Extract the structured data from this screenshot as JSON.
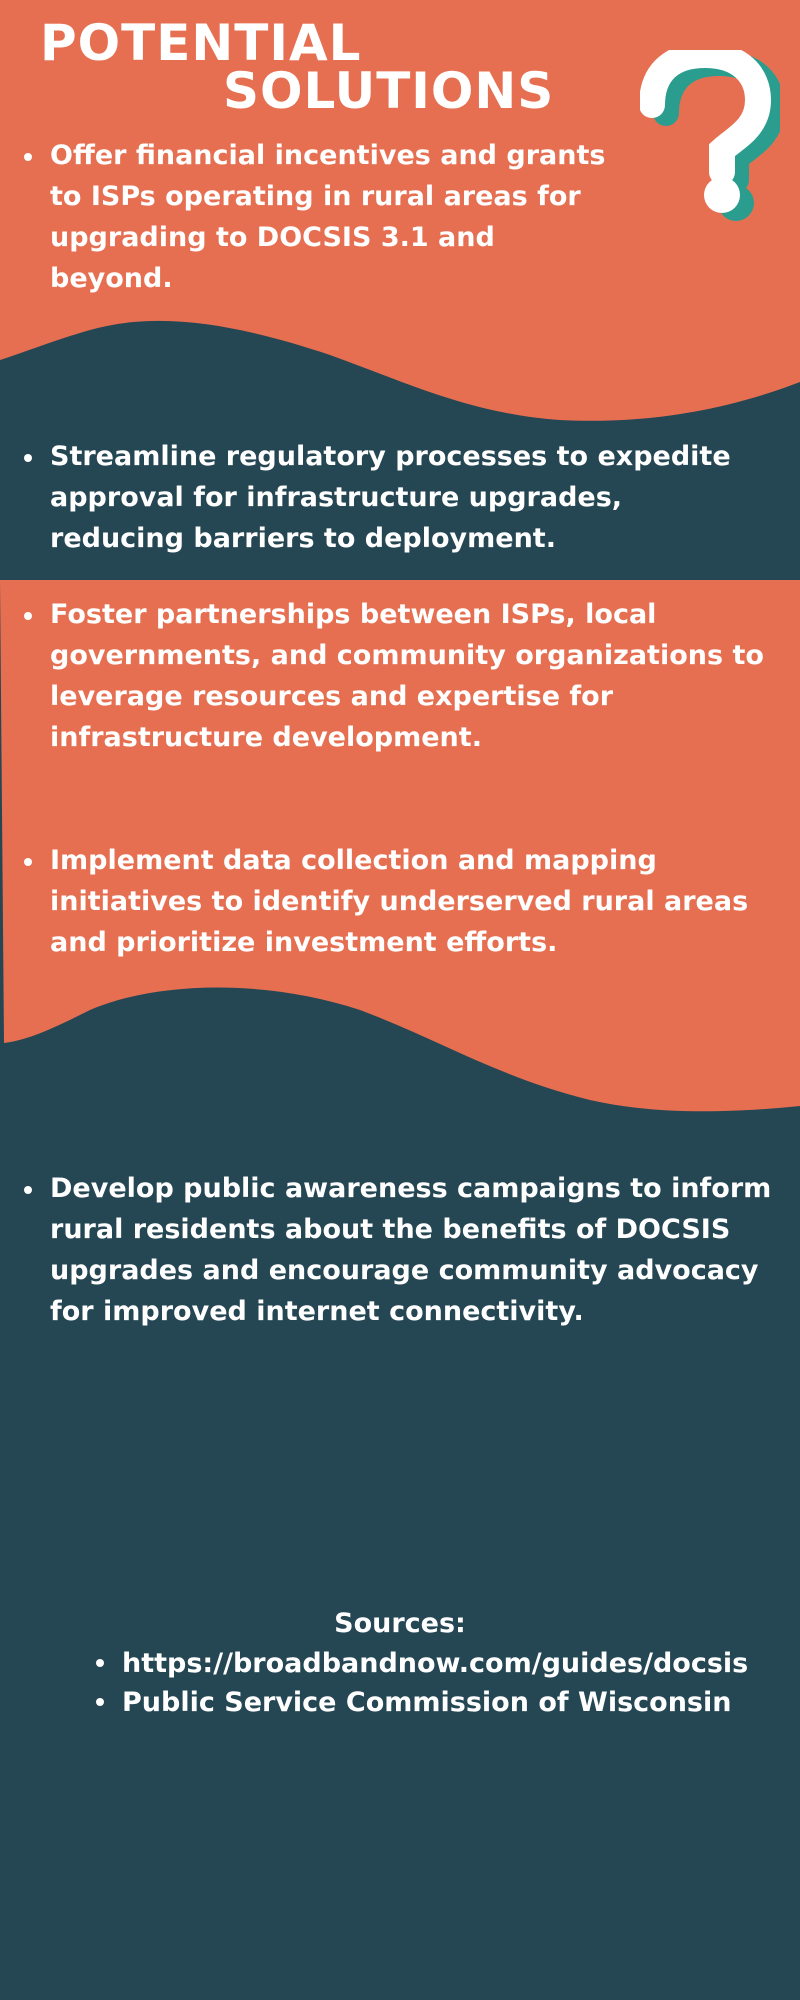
{
  "colors": {
    "background": "#254653",
    "accent": "#E76F51",
    "teal": "#2A9D8F",
    "text": "#FFFFFF"
  },
  "title": {
    "line1": "POTENTIAL",
    "line2": "SOLUTIONS"
  },
  "icon": "question-mark-icon",
  "solutions": [
    "Offer financial incentives and grants to ISPs operating in rural areas for upgrading to DOCSIS 3.1 and beyond.",
    "Streamline regulatory processes to expedite approval for infrastructure upgrades, reducing barriers to deployment.",
    "Foster partnerships between ISPs, local governments, and community organizations to leverage resources and expertise for infrastructure development.",
    "Implement data collection and mapping initiatives to identify underserved rural areas and prioritize investment efforts.",
    "Develop public awareness campaigns to inform rural residents about the benefits of DOCSIS upgrades and encourage community advocacy for improved internet connectivity."
  ],
  "sources": {
    "heading": "Sources:",
    "items": [
      "https://broadbandnow.com/guides/docsis",
      "Public Service Commission of Wisconsin"
    ]
  }
}
